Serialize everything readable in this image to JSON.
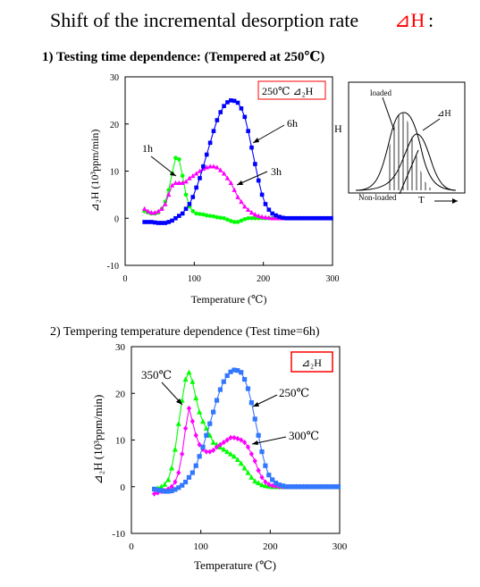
{
  "page": {
    "title": "Shift of the incremental desorption rate",
    "title_symbol": "⊿H",
    "title_colon": ":"
  },
  "chart_data": [
    {
      "type": "line",
      "heading": "1) Testing time dependence: (Tempered at 250℃)",
      "legend_box": "250℃ ⊿₂H",
      "xlabel": "Temperature (℃)",
      "ylabel": "⊿₂H (10³ppm/min)",
      "xlim": [
        0,
        300
      ],
      "ylim": [
        -10,
        30
      ],
      "xticks": [
        0,
        100,
        200,
        300
      ],
      "yticks": [
        -10,
        0,
        10,
        20,
        30
      ],
      "series": [
        {
          "name": "1h",
          "marker": "circle",
          "color": "#00ff00",
          "x": [
            28,
            33,
            38,
            43,
            48,
            53,
            58,
            63,
            68,
            73,
            78,
            83,
            88,
            93,
            98,
            103,
            108,
            113,
            118,
            123,
            128,
            133,
            138,
            143,
            148,
            153,
            158,
            163,
            168,
            173,
            178,
            183,
            188,
            193,
            198,
            203,
            208,
            213,
            218,
            223,
            228,
            233,
            238,
            243,
            248,
            253,
            258,
            263,
            268,
            273,
            278,
            283,
            288,
            293,
            298
          ],
          "y": [
            1.5,
            1.2,
            1.0,
            1.0,
            1.2,
            2.0,
            3.5,
            6.0,
            9.5,
            12.8,
            12.5,
            9.0,
            5.0,
            2.5,
            1.5,
            1.0,
            0.9,
            0.8,
            0.6,
            0.5,
            0.4,
            0.2,
            0.1,
            0,
            -0.3,
            -0.6,
            -0.8,
            -0.8,
            -0.5,
            -0.2,
            0,
            0,
            0,
            0,
            0,
            0,
            0,
            0,
            0,
            0,
            0,
            0,
            0,
            0,
            0,
            0,
            0,
            0,
            0,
            0,
            0,
            0,
            0,
            0,
            0
          ]
        },
        {
          "name": "3h",
          "marker": "triangle",
          "color": "#ff00ff",
          "x": [
            28,
            33,
            38,
            43,
            48,
            53,
            58,
            63,
            68,
            73,
            78,
            83,
            88,
            93,
            98,
            103,
            108,
            113,
            118,
            123,
            128,
            133,
            138,
            143,
            148,
            153,
            158,
            163,
            168,
            173,
            178,
            183,
            188,
            193,
            198,
            203,
            208,
            213,
            218,
            223,
            228,
            233,
            238,
            243,
            248,
            253,
            258,
            263,
            268,
            273,
            278,
            283,
            288,
            293,
            298
          ],
          "y": [
            2.0,
            1.5,
            1.2,
            1.2,
            1.5,
            2.0,
            3.0,
            5.0,
            7.0,
            7.5,
            7.5,
            7.5,
            7.8,
            8.5,
            9.0,
            9.5,
            10.0,
            10.5,
            10.8,
            11.0,
            11.0,
            10.8,
            10.2,
            9.5,
            8.5,
            7.5,
            6.0,
            4.5,
            3.5,
            2.5,
            1.8,
            1.2,
            0.8,
            0.5,
            0.3,
            0.2,
            0.1,
            0,
            0,
            0,
            0,
            0,
            0,
            0,
            0,
            0,
            0,
            0,
            0,
            0,
            0,
            0,
            0,
            0,
            0
          ]
        },
        {
          "name": "6h",
          "marker": "square",
          "color": "#0000ff",
          "x": [
            28,
            33,
            38,
            43,
            48,
            53,
            58,
            63,
            68,
            73,
            78,
            83,
            88,
            93,
            98,
            103,
            108,
            113,
            118,
            123,
            128,
            133,
            138,
            143,
            148,
            153,
            158,
            163,
            168,
            173,
            178,
            183,
            188,
            193,
            198,
            203,
            208,
            213,
            218,
            223,
            228,
            233,
            238,
            243,
            248,
            253,
            258,
            263,
            268,
            273,
            278,
            283,
            288,
            293,
            298
          ],
          "y": [
            -0.8,
            -0.8,
            -0.8,
            -0.9,
            -1.0,
            -1.0,
            -1.0,
            -0.8,
            -0.5,
            0,
            0.5,
            1.0,
            2.0,
            3.0,
            4.5,
            6.5,
            8.5,
            11.0,
            13.5,
            16.0,
            18.5,
            20.8,
            22.5,
            23.8,
            24.6,
            25.0,
            24.9,
            24.5,
            23.3,
            21.5,
            18.5,
            15.0,
            11.5,
            8.0,
            5.0,
            3.0,
            1.8,
            1.0,
            0.6,
            0.3,
            0.1,
            0,
            0,
            0,
            0,
            0,
            0,
            0,
            0,
            0,
            0,
            0,
            0,
            0,
            0
          ]
        }
      ],
      "annotations": [
        "1h",
        "3h",
        "6h"
      ]
    },
    {
      "type": "line",
      "heading": "2) Tempering temperature dependence (Test time=6h)",
      "legend_box": "⊿₂H",
      "xlabel": "Temperature (℃)",
      "ylabel": "⊿₂H (10³ppm/min)",
      "xlim": [
        0,
        300
      ],
      "ylim": [
        -10,
        30
      ],
      "xticks": [
        0,
        100,
        200,
        300
      ],
      "yticks": [
        -10,
        0,
        10,
        20,
        30
      ],
      "series": [
        {
          "name": "350℃",
          "marker": "triangle",
          "color": "#00ff00",
          "x": [
            33,
            38,
            43,
            48,
            53,
            58,
            63,
            68,
            73,
            78,
            83,
            88,
            93,
            98,
            103,
            108,
            113,
            118,
            123,
            128,
            133,
            138,
            143,
            148,
            153,
            158,
            163,
            168,
            173,
            178,
            183,
            188,
            193,
            198,
            203,
            208,
            213,
            218,
            223,
            228,
            233,
            238,
            243,
            248,
            253,
            258,
            263,
            268,
            273,
            278,
            283,
            288,
            293,
            298
          ],
          "y": [
            -0.5,
            -0.3,
            0,
            0.5,
            1.5,
            4.0,
            8.0,
            13.5,
            18.5,
            23.0,
            24.5,
            22.5,
            19.0,
            16.0,
            14.0,
            12.5,
            11.0,
            9.5,
            9.0,
            8.5,
            8.0,
            7.5,
            7.0,
            6.5,
            5.8,
            5.0,
            4.0,
            3.0,
            2.0,
            1.2,
            0.8,
            0.4,
            0.2,
            0.1,
            0,
            0,
            0,
            0,
            0,
            0,
            0,
            0,
            0,
            0,
            0,
            0,
            0,
            0,
            0,
            0,
            0,
            0,
            0,
            0
          ]
        },
        {
          "name": "300℃",
          "marker": "diamond",
          "color": "#ff00ff",
          "x": [
            33,
            38,
            43,
            48,
            53,
            58,
            63,
            68,
            73,
            78,
            83,
            88,
            93,
            98,
            103,
            108,
            113,
            118,
            123,
            128,
            133,
            138,
            143,
            148,
            153,
            158,
            163,
            168,
            173,
            178,
            183,
            188,
            193,
            198,
            203,
            208,
            213,
            218,
            223,
            228,
            233,
            238,
            243,
            248,
            253,
            258,
            263,
            268,
            273,
            278,
            283,
            288,
            293,
            298
          ],
          "y": [
            -1.5,
            -1.3,
            -1.0,
            -0.8,
            -0.5,
            0,
            1.0,
            3.0,
            7.0,
            12.5,
            16.8,
            14.0,
            11.0,
            9.0,
            8.0,
            7.5,
            7.5,
            7.8,
            8.5,
            9.0,
            9.5,
            10.0,
            10.5,
            10.5,
            10.3,
            10.0,
            9.5,
            8.5,
            7.0,
            5.5,
            3.5,
            2.0,
            1.0,
            0.5,
            0.2,
            0.1,
            0,
            0,
            0,
            0,
            0,
            0,
            0,
            0,
            0,
            0,
            0,
            0,
            0,
            0,
            0,
            0,
            0,
            0
          ]
        },
        {
          "name": "250℃",
          "marker": "square",
          "color": "#3377ff",
          "x": [
            33,
            38,
            43,
            48,
            53,
            58,
            63,
            68,
            73,
            78,
            83,
            88,
            93,
            98,
            103,
            108,
            113,
            118,
            123,
            128,
            133,
            138,
            143,
            148,
            153,
            158,
            163,
            168,
            173,
            178,
            183,
            188,
            193,
            198,
            203,
            208,
            213,
            218,
            223,
            228,
            233,
            238,
            243,
            248,
            253,
            258,
            263,
            268,
            273,
            278,
            283,
            288,
            293,
            298
          ],
          "y": [
            -0.5,
            -0.7,
            -0.8,
            -1.0,
            -1.0,
            -0.9,
            -0.6,
            -0.2,
            0.3,
            1.0,
            2.0,
            3.0,
            4.5,
            6.5,
            8.5,
            11.0,
            13.5,
            16.0,
            18.5,
            20.8,
            22.5,
            23.8,
            24.6,
            25.0,
            24.9,
            24.5,
            23.0,
            21.0,
            18.0,
            14.5,
            11.0,
            7.5,
            4.5,
            2.5,
            1.5,
            0.8,
            0.4,
            0.2,
            0,
            0,
            0,
            0,
            0,
            0,
            0,
            0,
            0,
            0,
            0,
            0,
            0,
            0,
            0,
            0
          ]
        }
      ],
      "annotations": [
        "350℃",
        "250℃",
        "300℃"
      ]
    }
  ],
  "schematic": {
    "label_loaded": "loaded",
    "label_nonloaded": "Non-loaded",
    "label_delta": "⊿H",
    "label_axis_y": "H",
    "label_axis_x": "T"
  }
}
